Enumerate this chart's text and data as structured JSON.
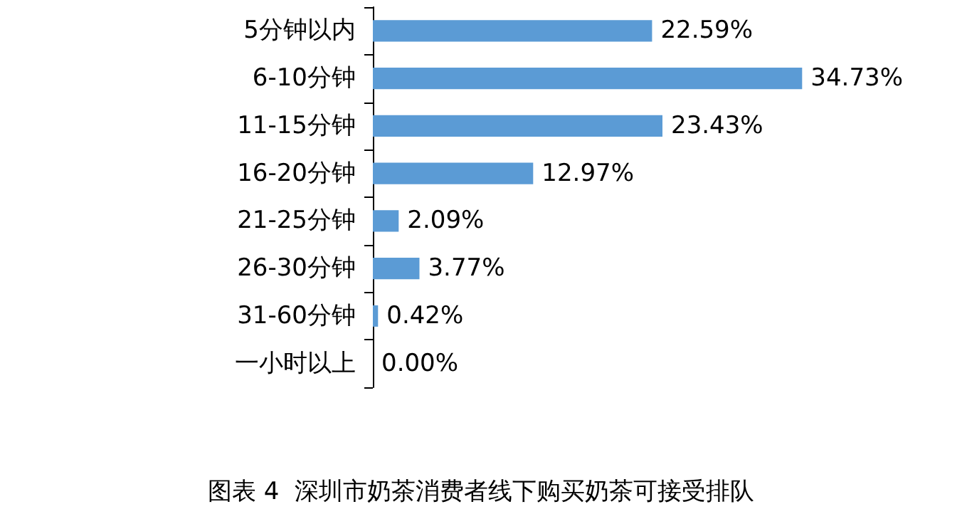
{
  "chart_data": {
    "type": "bar",
    "orientation": "horizontal",
    "title": "图表 4  深圳市奶茶消费者线下购买奶茶可接受排队",
    "categories": [
      "5分钟以内",
      "6-10分钟",
      "11-15分钟",
      "16-20分钟",
      "21-25分钟",
      "26-30分钟",
      "31-60分钟",
      "一小时以上"
    ],
    "values": [
      22.59,
      34.73,
      23.43,
      12.97,
      2.09,
      3.77,
      0.42,
      0.0
    ],
    "value_labels": [
      "22.59%",
      "34.73%",
      "23.43%",
      "12.97%",
      "2.09%",
      "3.77%",
      "0.42%",
      "0.00%"
    ],
    "color": "#5b9bd5"
  }
}
